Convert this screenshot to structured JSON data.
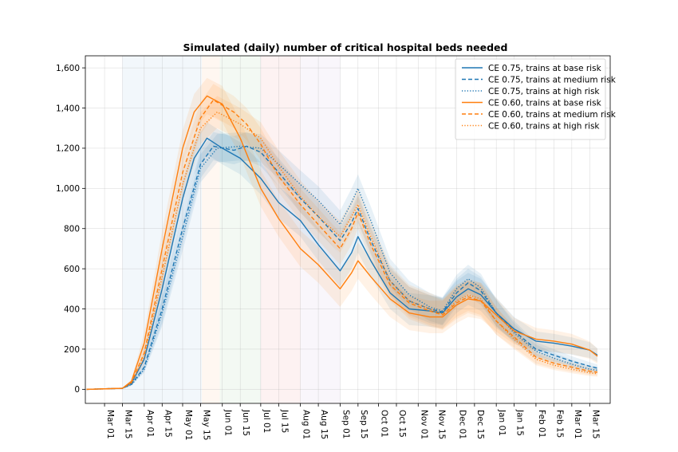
{
  "chart_data": {
    "type": "line",
    "title": "Simulated (daily) number of critical hospital beds needed",
    "xlabel": "",
    "ylabel": "",
    "x_range": [
      "2020-02-15",
      "2021-03-31"
    ],
    "ylim": [
      -70,
      1660
    ],
    "y_ticks": [
      0,
      200,
      400,
      600,
      800,
      1000,
      1200,
      1400,
      1600
    ],
    "y_tick_labels": [
      "0",
      "200",
      "400",
      "600",
      "800",
      "1,000",
      "1,200",
      "1,400",
      "1,600"
    ],
    "x_ticks": [
      {
        "date": "2020-03-01",
        "label": "Mar 01"
      },
      {
        "date": "2020-03-15",
        "label": "Mar 15"
      },
      {
        "date": "2020-04-01",
        "label": "Apr 01"
      },
      {
        "date": "2020-04-15",
        "label": "Apr 15"
      },
      {
        "date": "2020-05-01",
        "label": "May 01"
      },
      {
        "date": "2020-05-15",
        "label": "May 15"
      },
      {
        "date": "2020-06-01",
        "label": "Jun 01"
      },
      {
        "date": "2020-06-15",
        "label": "Jun 15"
      },
      {
        "date": "2020-07-01",
        "label": "Jul 01"
      },
      {
        "date": "2020-07-15",
        "label": "Jul 15"
      },
      {
        "date": "2020-08-01",
        "label": "Aug 01"
      },
      {
        "date": "2020-08-15",
        "label": "Aug 15"
      },
      {
        "date": "2020-09-01",
        "label": "Sep 01"
      },
      {
        "date": "2020-09-15",
        "label": "Sep 15"
      },
      {
        "date": "2020-10-01",
        "label": "Oct 01"
      },
      {
        "date": "2020-10-15",
        "label": "Oct 15"
      },
      {
        "date": "2020-11-01",
        "label": "Nov 01"
      },
      {
        "date": "2020-11-15",
        "label": "Nov 15"
      },
      {
        "date": "2020-12-01",
        "label": "Dec 01"
      },
      {
        "date": "2020-12-15",
        "label": "Dec 15"
      },
      {
        "date": "2021-01-01",
        "label": "Jan 01"
      },
      {
        "date": "2021-01-15",
        "label": "Jan 15"
      },
      {
        "date": "2021-02-01",
        "label": "Feb 01"
      },
      {
        "date": "2021-02-15",
        "label": "Feb 15"
      },
      {
        "date": "2021-03-01",
        "label": "Mar 01"
      },
      {
        "date": "2021-03-15",
        "label": "Mar 15"
      }
    ],
    "grid": true,
    "legend_position": "top-right",
    "phase_bands": [
      {
        "start": "2020-03-15",
        "end": "2020-05-16",
        "color": "#1f77b4"
      },
      {
        "start": "2020-05-16",
        "end": "2020-05-30",
        "color": "#ff7f0e"
      },
      {
        "start": "2020-05-30",
        "end": "2020-07-01",
        "color": "#2ca02c"
      },
      {
        "start": "2020-07-01",
        "end": "2020-08-01",
        "color": "#d62728"
      },
      {
        "start": "2020-08-01",
        "end": "2020-09-01",
        "color": "#9467bd"
      }
    ],
    "series": [
      {
        "name": "CE 0.75, trains at base risk",
        "color": "#1f77b4",
        "dash": "solid",
        "band": 80,
        "points": [
          [
            "2020-02-16",
            0
          ],
          [
            "2020-03-15",
            5
          ],
          [
            "2020-03-22",
            30
          ],
          [
            "2020-04-01",
            150
          ],
          [
            "2020-04-15",
            500
          ],
          [
            "2020-05-01",
            950
          ],
          [
            "2020-05-10",
            1150
          ],
          [
            "2020-05-20",
            1250
          ],
          [
            "2020-06-01",
            1200
          ],
          [
            "2020-06-15",
            1150
          ],
          [
            "2020-07-01",
            1050
          ],
          [
            "2020-07-15",
            930
          ],
          [
            "2020-08-01",
            840
          ],
          [
            "2020-08-15",
            720
          ],
          [
            "2020-09-01",
            590
          ],
          [
            "2020-09-10",
            680
          ],
          [
            "2020-09-15",
            760
          ],
          [
            "2020-09-25",
            640
          ],
          [
            "2020-10-10",
            480
          ],
          [
            "2020-10-25",
            400
          ],
          [
            "2020-11-10",
            390
          ],
          [
            "2020-11-20",
            380
          ],
          [
            "2020-12-01",
            460
          ],
          [
            "2020-12-10",
            500
          ],
          [
            "2020-12-20",
            470
          ],
          [
            "2021-01-01",
            380
          ],
          [
            "2021-01-15",
            300
          ],
          [
            "2021-02-01",
            240
          ],
          [
            "2021-02-15",
            230
          ],
          [
            "2021-03-01",
            215
          ],
          [
            "2021-03-15",
            195
          ],
          [
            "2021-03-21",
            170
          ]
        ]
      },
      {
        "name": "CE 0.75, trains at medium risk",
        "color": "#1f77b4",
        "dash": "dashed",
        "band": 70,
        "points": [
          [
            "2020-02-16",
            0
          ],
          [
            "2020-03-15",
            5
          ],
          [
            "2020-03-22",
            25
          ],
          [
            "2020-04-01",
            110
          ],
          [
            "2020-04-15",
            400
          ],
          [
            "2020-05-01",
            800
          ],
          [
            "2020-05-15",
            1120
          ],
          [
            "2020-05-25",
            1210
          ],
          [
            "2020-06-10",
            1190
          ],
          [
            "2020-06-20",
            1210
          ],
          [
            "2020-07-01",
            1180
          ],
          [
            "2020-07-15",
            1080
          ],
          [
            "2020-08-01",
            950
          ],
          [
            "2020-08-15",
            860
          ],
          [
            "2020-09-01",
            740
          ],
          [
            "2020-09-10",
            830
          ],
          [
            "2020-09-15",
            900
          ],
          [
            "2020-09-25",
            740
          ],
          [
            "2020-10-10",
            540
          ],
          [
            "2020-10-25",
            440
          ],
          [
            "2020-11-10",
            400
          ],
          [
            "2020-11-20",
            385
          ],
          [
            "2020-12-01",
            480
          ],
          [
            "2020-12-10",
            530
          ],
          [
            "2020-12-20",
            490
          ],
          [
            "2021-01-01",
            380
          ],
          [
            "2021-01-15",
            290
          ],
          [
            "2021-02-01",
            200
          ],
          [
            "2021-02-15",
            170
          ],
          [
            "2021-03-01",
            140
          ],
          [
            "2021-03-15",
            115
          ],
          [
            "2021-03-21",
            105
          ]
        ]
      },
      {
        "name": "CE 0.75, trains at high risk",
        "color": "#1f77b4",
        "dash": "dotted",
        "band": 70,
        "points": [
          [
            "2020-02-16",
            0
          ],
          [
            "2020-03-15",
            5
          ],
          [
            "2020-03-22",
            22
          ],
          [
            "2020-04-01",
            100
          ],
          [
            "2020-04-15",
            380
          ],
          [
            "2020-05-01",
            760
          ],
          [
            "2020-05-15",
            1100
          ],
          [
            "2020-05-28",
            1200
          ],
          [
            "2020-06-15",
            1210
          ],
          [
            "2020-07-01",
            1200
          ],
          [
            "2020-07-15",
            1120
          ],
          [
            "2020-08-01",
            1020
          ],
          [
            "2020-08-15",
            940
          ],
          [
            "2020-09-01",
            820
          ],
          [
            "2020-09-10",
            930
          ],
          [
            "2020-09-15",
            1000
          ],
          [
            "2020-09-25",
            840
          ],
          [
            "2020-10-10",
            580
          ],
          [
            "2020-10-25",
            470
          ],
          [
            "2020-11-10",
            410
          ],
          [
            "2020-11-20",
            390
          ],
          [
            "2020-12-01",
            500
          ],
          [
            "2020-12-10",
            550
          ],
          [
            "2020-12-20",
            505
          ],
          [
            "2021-01-01",
            380
          ],
          [
            "2021-01-15",
            280
          ],
          [
            "2021-02-01",
            190
          ],
          [
            "2021-02-15",
            155
          ],
          [
            "2021-03-01",
            125
          ],
          [
            "2021-03-15",
            100
          ],
          [
            "2021-03-21",
            95
          ]
        ]
      },
      {
        "name": "CE 0.60, trains at base risk",
        "color": "#ff7f0e",
        "dash": "solid",
        "band": 90,
        "points": [
          [
            "2020-02-16",
            0
          ],
          [
            "2020-03-15",
            5
          ],
          [
            "2020-03-22",
            40
          ],
          [
            "2020-04-01",
            230
          ],
          [
            "2020-04-15",
            700
          ],
          [
            "2020-05-01",
            1200
          ],
          [
            "2020-05-10",
            1380
          ],
          [
            "2020-05-20",
            1460
          ],
          [
            "2020-06-01",
            1420
          ],
          [
            "2020-06-15",
            1250
          ],
          [
            "2020-07-01",
            1000
          ],
          [
            "2020-07-15",
            850
          ],
          [
            "2020-08-01",
            700
          ],
          [
            "2020-08-15",
            620
          ],
          [
            "2020-09-01",
            500
          ],
          [
            "2020-09-10",
            580
          ],
          [
            "2020-09-15",
            640
          ],
          [
            "2020-09-25",
            560
          ],
          [
            "2020-10-10",
            450
          ],
          [
            "2020-10-25",
            380
          ],
          [
            "2020-11-10",
            360
          ],
          [
            "2020-11-20",
            360
          ],
          [
            "2020-12-01",
            420
          ],
          [
            "2020-12-10",
            450
          ],
          [
            "2020-12-20",
            440
          ],
          [
            "2021-01-01",
            370
          ],
          [
            "2021-01-15",
            290
          ],
          [
            "2021-02-01",
            250
          ],
          [
            "2021-02-15",
            240
          ],
          [
            "2021-03-01",
            225
          ],
          [
            "2021-03-15",
            195
          ],
          [
            "2021-03-21",
            165
          ]
        ]
      },
      {
        "name": "CE 0.60, trains at medium risk",
        "color": "#ff7f0e",
        "dash": "dashed",
        "band": 80,
        "points": [
          [
            "2020-02-16",
            0
          ],
          [
            "2020-03-15",
            5
          ],
          [
            "2020-03-22",
            35
          ],
          [
            "2020-04-01",
            180
          ],
          [
            "2020-04-15",
            600
          ],
          [
            "2020-05-01",
            1080
          ],
          [
            "2020-05-15",
            1350
          ],
          [
            "2020-05-25",
            1440
          ],
          [
            "2020-06-10",
            1380
          ],
          [
            "2020-06-20",
            1320
          ],
          [
            "2020-07-01",
            1220
          ],
          [
            "2020-07-15",
            1060
          ],
          [
            "2020-08-01",
            920
          ],
          [
            "2020-08-15",
            820
          ],
          [
            "2020-09-01",
            700
          ],
          [
            "2020-09-10",
            800
          ],
          [
            "2020-09-15",
            880
          ],
          [
            "2020-09-25",
            720
          ],
          [
            "2020-10-10",
            520
          ],
          [
            "2020-10-25",
            430
          ],
          [
            "2020-11-10",
            390
          ],
          [
            "2020-11-20",
            370
          ],
          [
            "2020-12-01",
            430
          ],
          [
            "2020-12-10",
            460
          ],
          [
            "2020-12-20",
            440
          ],
          [
            "2021-01-01",
            340
          ],
          [
            "2021-01-15",
            260
          ],
          [
            "2021-02-01",
            160
          ],
          [
            "2021-02-15",
            130
          ],
          [
            "2021-03-01",
            110
          ],
          [
            "2021-03-15",
            90
          ],
          [
            "2021-03-21",
            85
          ]
        ]
      },
      {
        "name": "CE 0.60, trains at high risk",
        "color": "#ff7f0e",
        "dash": "dotted",
        "band": 80,
        "points": [
          [
            "2020-02-16",
            0
          ],
          [
            "2020-03-15",
            5
          ],
          [
            "2020-03-22",
            30
          ],
          [
            "2020-04-01",
            160
          ],
          [
            "2020-04-15",
            560
          ],
          [
            "2020-05-01",
            1020
          ],
          [
            "2020-05-15",
            1300
          ],
          [
            "2020-05-28",
            1380
          ],
          [
            "2020-06-15",
            1320
          ],
          [
            "2020-07-01",
            1250
          ],
          [
            "2020-07-15",
            1110
          ],
          [
            "2020-08-01",
            960
          ],
          [
            "2020-08-15",
            860
          ],
          [
            "2020-09-01",
            760
          ],
          [
            "2020-09-10",
            860
          ],
          [
            "2020-09-15",
            920
          ],
          [
            "2020-09-25",
            760
          ],
          [
            "2020-10-10",
            540
          ],
          [
            "2020-10-25",
            440
          ],
          [
            "2020-11-10",
            400
          ],
          [
            "2020-11-20",
            375
          ],
          [
            "2020-12-01",
            440
          ],
          [
            "2020-12-10",
            470
          ],
          [
            "2020-12-20",
            450
          ],
          [
            "2021-01-01",
            340
          ],
          [
            "2021-01-15",
            250
          ],
          [
            "2021-02-01",
            150
          ],
          [
            "2021-02-15",
            120
          ],
          [
            "2021-03-01",
            100
          ],
          [
            "2021-03-15",
            82
          ],
          [
            "2021-03-21",
            78
          ]
        ]
      }
    ]
  }
}
